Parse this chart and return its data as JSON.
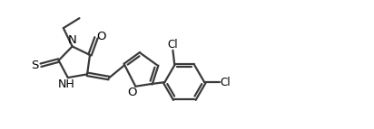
{
  "background_color": "#ffffff",
  "line_color": "#3a3a3a",
  "line_width": 1.6,
  "text_color": "#000000",
  "font_size": 8.5,
  "fig_width": 4.12,
  "fig_height": 1.43,
  "dpi": 100,
  "xlim": [
    0,
    10.5
  ],
  "ylim": [
    0,
    3.6
  ]
}
